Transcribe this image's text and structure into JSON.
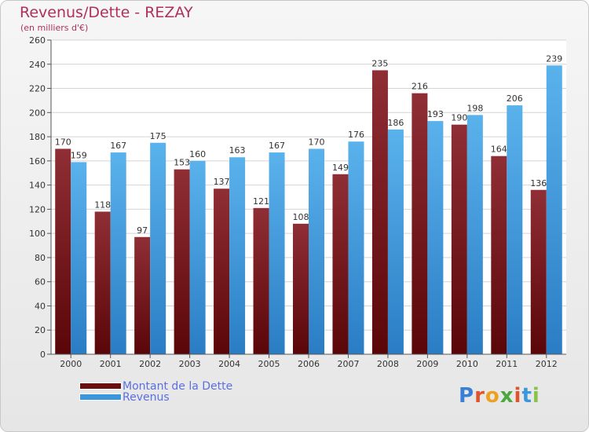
{
  "title": "Revenus/Dette - REZAY",
  "subtitle": "(en milliers d'€)",
  "brand": "Proxiti",
  "colors": {
    "dette": "#6b0e10",
    "revenus": "#3a97dc",
    "title": "#b0305a",
    "legend_text": "#5b6fe0"
  },
  "chart_data": {
    "type": "bar",
    "categories": [
      "2000",
      "2001",
      "2002",
      "2003",
      "2004",
      "2005",
      "2006",
      "2007",
      "2008",
      "2009",
      "2010",
      "2011",
      "2012"
    ],
    "series": [
      {
        "name": "Montant de la Dette",
        "values": [
          170,
          118,
          97,
          153,
          137,
          121,
          108,
          149,
          235,
          216,
          190,
          164,
          136
        ]
      },
      {
        "name": "Revenus",
        "values": [
          159,
          167,
          175,
          160,
          163,
          167,
          170,
          176,
          186,
          193,
          198,
          206,
          239
        ]
      }
    ],
    "yticks": [
      0,
      20,
      40,
      60,
      80,
      100,
      120,
      140,
      160,
      180,
      200,
      220,
      240,
      260
    ],
    "ylim": [
      0,
      260
    ],
    "grid": true,
    "legend_position": "bottom-left"
  }
}
